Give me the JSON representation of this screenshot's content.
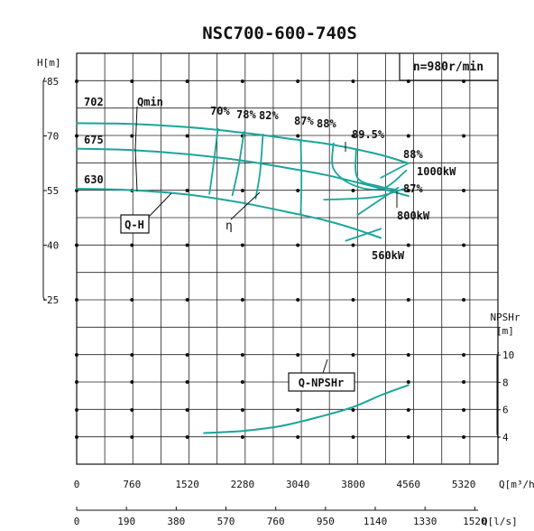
{
  "chart_data": {
    "type": "line",
    "title": "NSC700-600-740S",
    "speed_label": "n=980r/min",
    "left_axis": {
      "label": "H[m]",
      "ticks": [
        "85",
        "70",
        "55",
        "40",
        "25"
      ],
      "range": [
        25,
        85
      ]
    },
    "npsh_axis": {
      "label_line1": "NPSHr",
      "label_line2": "[m]",
      "ticks": [
        "10",
        "8",
        "6",
        "4"
      ],
      "range": [
        4,
        10
      ]
    },
    "x_axis_m3h": {
      "label": "Q[m³/h]",
      "ticks": [
        "0",
        "760",
        "1520",
        "2280",
        "3040",
        "3800",
        "4560",
        "5320"
      ],
      "range": [
        0,
        5700
      ]
    },
    "x_axis_ls": {
      "label": "Q[l/s]",
      "ticks": [
        "0",
        "190",
        "380",
        "570",
        "760",
        "950",
        "1140",
        "1330",
        "1520"
      ]
    },
    "curve_labels": {
      "qmin": "Qmin",
      "qh": "Q-H",
      "eta": "η",
      "npsh": "Q-NPSHr",
      "p1000": "1000kW",
      "p800": "800kW",
      "p560": "560kW"
    },
    "impellers": [
      {
        "label": "702",
        "q": [
          0,
          760,
          1520,
          2280,
          3040,
          3420,
          3800,
          4180,
          4560
        ],
        "h": [
          73.5,
          73.3,
          72.4,
          70.9,
          68.9,
          67.9,
          66.5,
          64.8,
          62.5
        ]
      },
      {
        "label": "675",
        "q": [
          0,
          760,
          1520,
          2280,
          3040,
          3420,
          3800,
          4180,
          4560
        ],
        "h": [
          66.5,
          66.1,
          65.0,
          63.2,
          60.7,
          59.3,
          57.5,
          55.6,
          53.5
        ]
      },
      {
        "label": "630",
        "q": [
          0,
          760,
          1520,
          2280,
          3040,
          3420,
          3800,
          4180
        ],
        "h": [
          55.5,
          55.1,
          53.9,
          51.6,
          48.5,
          46.8,
          44.6,
          42.0
        ]
      }
    ],
    "efficiency_labels": [
      "70%",
      "78%",
      "82%",
      "87%",
      "88%",
      "89.5%",
      "88%",
      "87%"
    ],
    "efficiency_lines": [
      {
        "label": "70%",
        "q": [
          1940,
          1880,
          1825
        ],
        "h": [
          71.9,
          62,
          54.1
        ]
      },
      {
        "label": "78%",
        "q": [
          2300,
          2220,
          2140
        ],
        "h": [
          71.1,
          61,
          53.7
        ]
      },
      {
        "label": "82%",
        "q": [
          2560,
          2520,
          2460
        ],
        "h": [
          70.4,
          60,
          52.8
        ]
      },
      {
        "label": "87%",
        "q": [
          3080,
          3090,
          3080
        ],
        "h": [
          68.6,
          58,
          48.4
        ]
      }
    ],
    "npsh_curve": {
      "q": [
        1750,
        2280,
        2800,
        3350,
        3800,
        4200,
        4560
      ],
      "npshr": [
        4.3,
        4.45,
        4.8,
        5.5,
        6.2,
        7.1,
        7.8
      ]
    }
  }
}
